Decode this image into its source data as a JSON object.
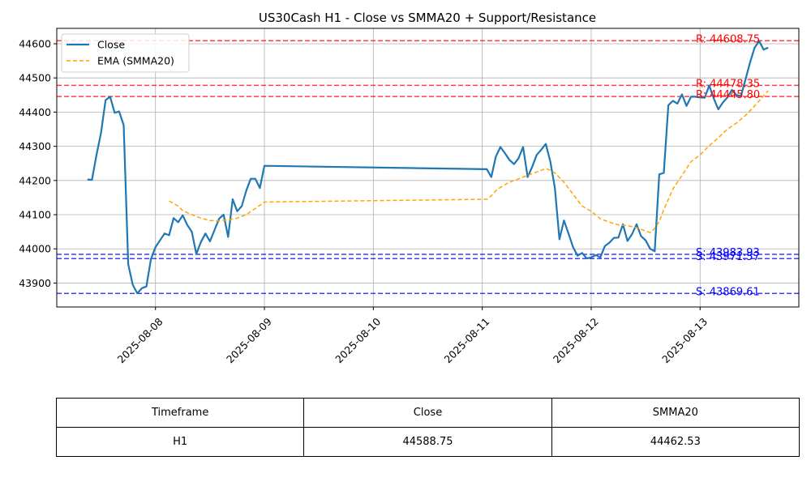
{
  "chart_data": {
    "type": "line",
    "title": "US30Cash H1 - Close vs SMMA20 + Support/Resistance",
    "xlabel": "",
    "ylabel": "",
    "x_ticks": [
      "2025-08-08",
      "2025-08-09",
      "2025-08-10",
      "2025-08-11",
      "2025-08-12",
      "2025-08-13"
    ],
    "y_ticks": [
      43900,
      44000,
      44100,
      44200,
      44300,
      44400,
      44500,
      44600
    ],
    "ylim": [
      43830,
      44645
    ],
    "grid": true,
    "legend_position": "top-left",
    "series": [
      {
        "name": "Close",
        "style": "solid",
        "color": "#1f77b4",
        "points": [
          [
            "2025-08-07 09:00",
            44203
          ],
          [
            "2025-08-07 10:00",
            44202
          ],
          [
            "2025-08-07 11:00",
            44275
          ],
          [
            "2025-08-07 12:00",
            44340
          ],
          [
            "2025-08-07 13:00",
            44435
          ],
          [
            "2025-08-07 14:00",
            44445
          ],
          [
            "2025-08-07 15:00",
            44398
          ],
          [
            "2025-08-07 16:00",
            44402
          ],
          [
            "2025-08-07 17:00",
            44362
          ],
          [
            "2025-08-07 18:00",
            43955
          ],
          [
            "2025-08-07 19:00",
            43895
          ],
          [
            "2025-08-07 20:00",
            43870
          ],
          [
            "2025-08-07 21:00",
            43885
          ],
          [
            "2025-08-07 22:00",
            43890
          ],
          [
            "2025-08-07 23:00",
            43970
          ],
          [
            "2025-08-08 00:00",
            44005
          ],
          [
            "2025-08-08 01:00",
            44025
          ],
          [
            "2025-08-08 02:00",
            44045
          ],
          [
            "2025-08-08 03:00",
            44040
          ],
          [
            "2025-08-08 04:00",
            44090
          ],
          [
            "2025-08-08 05:00",
            44078
          ],
          [
            "2025-08-08 06:00",
            44098
          ],
          [
            "2025-08-08 07:00",
            44070
          ],
          [
            "2025-08-08 08:00",
            44050
          ],
          [
            "2025-08-08 09:00",
            43985
          ],
          [
            "2025-08-08 10:00",
            44020
          ],
          [
            "2025-08-08 11:00",
            44045
          ],
          [
            "2025-08-08 12:00",
            44022
          ],
          [
            "2025-08-08 13:00",
            44055
          ],
          [
            "2025-08-08 14:00",
            44088
          ],
          [
            "2025-08-08 15:00",
            44100
          ],
          [
            "2025-08-08 16:00",
            44035
          ],
          [
            "2025-08-08 17:00",
            44145
          ],
          [
            "2025-08-08 18:00",
            44110
          ],
          [
            "2025-08-08 19:00",
            44125
          ],
          [
            "2025-08-08 20:00",
            44170
          ],
          [
            "2025-08-08 21:00",
            44205
          ],
          [
            "2025-08-08 22:00",
            44205
          ],
          [
            "2025-08-08 23:00",
            44178
          ],
          [
            "2025-08-09 00:00",
            44243
          ],
          [
            "2025-08-11 01:00",
            44233
          ],
          [
            "2025-08-11 02:00",
            44210
          ],
          [
            "2025-08-11 03:00",
            44270
          ],
          [
            "2025-08-11 04:00",
            44298
          ],
          [
            "2025-08-11 05:00",
            44280
          ],
          [
            "2025-08-11 06:00",
            44260
          ],
          [
            "2025-08-11 07:00",
            44248
          ],
          [
            "2025-08-11 08:00",
            44265
          ],
          [
            "2025-08-11 09:00",
            44298
          ],
          [
            "2025-08-11 10:00",
            44210
          ],
          [
            "2025-08-11 11:00",
            44240
          ],
          [
            "2025-08-11 12:00",
            44275
          ],
          [
            "2025-08-11 13:00",
            44290
          ],
          [
            "2025-08-11 14:00",
            44307
          ],
          [
            "2025-08-11 15:00",
            44255
          ],
          [
            "2025-08-11 16:00",
            44178
          ],
          [
            "2025-08-11 17:00",
            44028
          ],
          [
            "2025-08-11 18:00",
            44083
          ],
          [
            "2025-08-11 19:00",
            44045
          ],
          [
            "2025-08-11 20:00",
            44005
          ],
          [
            "2025-08-11 21:00",
            43980
          ],
          [
            "2025-08-11 22:00",
            43988
          ],
          [
            "2025-08-11 23:00",
            43972
          ],
          [
            "2025-08-12 00:00",
            43975
          ],
          [
            "2025-08-12 01:00",
            43982
          ],
          [
            "2025-08-12 02:00",
            43975
          ],
          [
            "2025-08-12 03:00",
            44008
          ],
          [
            "2025-08-12 04:00",
            44018
          ],
          [
            "2025-08-12 05:00",
            44032
          ],
          [
            "2025-08-12 06:00",
            44033
          ],
          [
            "2025-08-12 07:00",
            44072
          ],
          [
            "2025-08-12 08:00",
            44023
          ],
          [
            "2025-08-12 09:00",
            44043
          ],
          [
            "2025-08-12 10:00",
            44072
          ],
          [
            "2025-08-12 11:00",
            44037
          ],
          [
            "2025-08-12 12:00",
            44025
          ],
          [
            "2025-08-12 13:00",
            44000
          ],
          [
            "2025-08-12 14:00",
            43993
          ],
          [
            "2025-08-12 15:00",
            44218
          ],
          [
            "2025-08-12 16:00",
            44222
          ],
          [
            "2025-08-12 17:00",
            44420
          ],
          [
            "2025-08-12 18:00",
            44433
          ],
          [
            "2025-08-12 19:00",
            44425
          ],
          [
            "2025-08-12 20:00",
            44452
          ],
          [
            "2025-08-12 21:00",
            44418
          ],
          [
            "2025-08-12 22:00",
            44445
          ],
          [
            "2025-08-12 23:00",
            44445
          ],
          [
            "2025-08-13 00:00",
            44443
          ],
          [
            "2025-08-13 01:00",
            44442
          ],
          [
            "2025-08-13 02:00",
            44478
          ],
          [
            "2025-08-13 03:00",
            44440
          ],
          [
            "2025-08-13 04:00",
            44408
          ],
          [
            "2025-08-13 05:00",
            44428
          ],
          [
            "2025-08-13 06:00",
            44443
          ],
          [
            "2025-08-13 07:00",
            44465
          ],
          [
            "2025-08-13 08:00",
            44450
          ],
          [
            "2025-08-13 09:00",
            44447
          ],
          [
            "2025-08-13 10:00",
            44495
          ],
          [
            "2025-08-13 11:00",
            44545
          ],
          [
            "2025-08-13 12:00",
            44588
          ],
          [
            "2025-08-13 13:00",
            44608
          ],
          [
            "2025-08-13 14:00",
            44583
          ],
          [
            "2025-08-13 15:00",
            44588.75
          ]
        ]
      },
      {
        "name": "EMA (SMMA20)",
        "style": "dashed",
        "color": "#ffa500",
        "points": [
          [
            "2025-08-08 03:00",
            44140
          ],
          [
            "2025-08-08 04:00",
            44133
          ],
          [
            "2025-08-08 05:00",
            44125
          ],
          [
            "2025-08-08 06:00",
            44112
          ],
          [
            "2025-08-08 08:00",
            44100
          ],
          [
            "2025-08-08 10:00",
            44090
          ],
          [
            "2025-08-08 12:00",
            44083
          ],
          [
            "2025-08-08 14:00",
            44082
          ],
          [
            "2025-08-08 16:00",
            44085
          ],
          [
            "2025-08-08 18:00",
            44090
          ],
          [
            "2025-08-08 20:00",
            44100
          ],
          [
            "2025-08-08 22:00",
            44118
          ],
          [
            "2025-08-09 00:00",
            44137
          ],
          [
            "2025-08-11 01:00",
            44145
          ],
          [
            "2025-08-11 02:00",
            44155
          ],
          [
            "2025-08-11 03:00",
            44170
          ],
          [
            "2025-08-11 04:00",
            44180
          ],
          [
            "2025-08-11 06:00",
            44195
          ],
          [
            "2025-08-11 08:00",
            44205
          ],
          [
            "2025-08-11 10:00",
            44215
          ],
          [
            "2025-08-11 12:00",
            44225
          ],
          [
            "2025-08-11 14:00",
            44235
          ],
          [
            "2025-08-11 15:00",
            44230
          ],
          [
            "2025-08-11 16:00",
            44222
          ],
          [
            "2025-08-11 18:00",
            44195
          ],
          [
            "2025-08-11 20:00",
            44160
          ],
          [
            "2025-08-11 22:00",
            44125
          ],
          [
            "2025-08-12 00:00",
            44110
          ],
          [
            "2025-08-12 02:00",
            44088
          ],
          [
            "2025-08-12 04:00",
            44078
          ],
          [
            "2025-08-12 06:00",
            44070
          ],
          [
            "2025-08-12 08:00",
            44068
          ],
          [
            "2025-08-12 10:00",
            44062
          ],
          [
            "2025-08-12 12:00",
            44052
          ],
          [
            "2025-08-12 13:00",
            44048
          ],
          [
            "2025-08-12 14:00",
            44060
          ],
          [
            "2025-08-12 15:00",
            44080
          ],
          [
            "2025-08-12 16:00",
            44115
          ],
          [
            "2025-08-12 18:00",
            44175
          ],
          [
            "2025-08-12 20:00",
            44215
          ],
          [
            "2025-08-12 22:00",
            44255
          ],
          [
            "2025-08-13 00:00",
            44275
          ],
          [
            "2025-08-13 02:00",
            44302
          ],
          [
            "2025-08-13 04:00",
            44325
          ],
          [
            "2025-08-13 06:00",
            44350
          ],
          [
            "2025-08-13 08:00",
            44368
          ],
          [
            "2025-08-13 10:00",
            44390
          ],
          [
            "2025-08-13 12:00",
            44418
          ],
          [
            "2025-08-13 14:00",
            44448
          ],
          [
            "2025-08-13 15:00",
            44462.53
          ]
        ]
      }
    ],
    "reference_lines": [
      {
        "kind": "resistance",
        "value": 44608.75,
        "label": "R: 44608.75",
        "color": "#ff0000"
      },
      {
        "kind": "resistance",
        "value": 44478.35,
        "label": "R: 44478.35",
        "color": "#ff0000"
      },
      {
        "kind": "resistance",
        "value": 44445.8,
        "label": "R: 44445.80",
        "color": "#ff0000"
      },
      {
        "kind": "support",
        "value": 43983.93,
        "label": "S: 43983.93",
        "color": "#0000ff"
      },
      {
        "kind": "support",
        "value": 43971.57,
        "label": "S: 43971.57",
        "color": "#0000ff"
      },
      {
        "kind": "support",
        "value": 43869.61,
        "label": "S: 43869.61",
        "color": "#0000ff"
      }
    ]
  },
  "table": {
    "headers": [
      "Timeframe",
      "Close",
      "SMMA20"
    ],
    "rows": [
      [
        "H1",
        "44588.75",
        "44462.53"
      ]
    ]
  }
}
